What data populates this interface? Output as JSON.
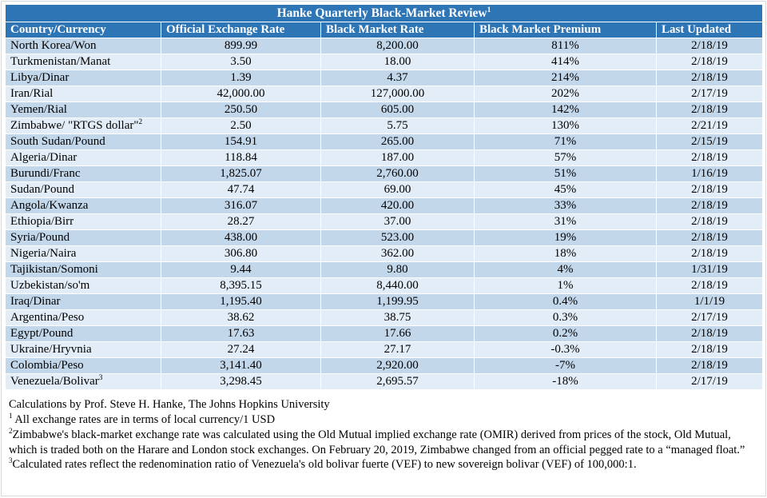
{
  "title": {
    "text": "Hanke Quarterly Black-Market Review",
    "sup": "1"
  },
  "colors": {
    "header_bg": "#2E75B6",
    "header_text": "#FFFFFF",
    "row_dark": "#C3D7EB",
    "row_light": "#E3EDF7"
  },
  "chart_data": {
    "type": "table",
    "title": "Hanke Quarterly Black-Market Review",
    "columns": [
      "Country/Currency",
      "Official Exchange Rate",
      "Black Market Rate",
      "Black Market Premium",
      "Last Updated"
    ],
    "rows": [
      {
        "country": "North Korea/Won",
        "sup": "",
        "official": "899.99",
        "black_market": "8,200.00",
        "premium": "811%",
        "updated": "2/18/19"
      },
      {
        "country": "Turkmenistan/Manat",
        "sup": "",
        "official": "3.50",
        "black_market": "18.00",
        "premium": "414%",
        "updated": "2/18/19"
      },
      {
        "country": "Libya/Dinar",
        "sup": "",
        "official": "1.39",
        "black_market": "4.37",
        "premium": "214%",
        "updated": "2/18/19"
      },
      {
        "country": "Iran/Rial",
        "sup": "",
        "official": "42,000.00",
        "black_market": "127,000.00",
        "premium": "202%",
        "updated": "2/17/19"
      },
      {
        "country": "Yemen/Rial",
        "sup": "",
        "official": "250.50",
        "black_market": "605.00",
        "premium": "142%",
        "updated": "2/18/19"
      },
      {
        "country": "Zimbabwe/ \"RTGS dollar\"",
        "sup": "2",
        "official": "2.50",
        "black_market": "5.75",
        "premium": "130%",
        "updated": "2/21/19"
      },
      {
        "country": "South Sudan/Pound",
        "sup": "",
        "official": "154.91",
        "black_market": "265.00",
        "premium": "71%",
        "updated": "2/15/19"
      },
      {
        "country": "Algeria/Dinar",
        "sup": "",
        "official": "118.84",
        "black_market": "187.00",
        "premium": "57%",
        "updated": "2/18/19"
      },
      {
        "country": "Burundi/Franc",
        "sup": "",
        "official": "1,825.07",
        "black_market": "2,760.00",
        "premium": "51%",
        "updated": "1/16/19"
      },
      {
        "country": "Sudan/Pound",
        "sup": "",
        "official": "47.74",
        "black_market": "69.00",
        "premium": "45%",
        "updated": "2/18/19"
      },
      {
        "country": "Angola/Kwanza",
        "sup": "",
        "official": "316.07",
        "black_market": "420.00",
        "premium": "33%",
        "updated": "2/18/19"
      },
      {
        "country": "Ethiopia/Birr",
        "sup": "",
        "official": "28.27",
        "black_market": "37.00",
        "premium": "31%",
        "updated": "2/18/19"
      },
      {
        "country": "Syria/Pound",
        "sup": "",
        "official": "438.00",
        "black_market": "523.00",
        "premium": "19%",
        "updated": "2/18/19"
      },
      {
        "country": "Nigeria/Naira",
        "sup": "",
        "official": "306.80",
        "black_market": "362.00",
        "premium": "18%",
        "updated": "2/18/19"
      },
      {
        "country": "Tajikistan/Somoni",
        "sup": "",
        "official": "9.44",
        "black_market": "9.80",
        "premium": "4%",
        "updated": "1/31/19"
      },
      {
        "country": "Uzbekistan/so'm",
        "sup": "",
        "official": "8,395.15",
        "black_market": "8,440.00",
        "premium": "1%",
        "updated": "2/18/19"
      },
      {
        "country": "Iraq/Dinar",
        "sup": "",
        "official": "1,195.40",
        "black_market": "1,199.95",
        "premium": "0.4%",
        "updated": "1/1/19"
      },
      {
        "country": "Argentina/Peso",
        "sup": "",
        "official": "38.62",
        "black_market": "38.75",
        "premium": "0.3%",
        "updated": "2/17/19"
      },
      {
        "country": "Egypt/Pound",
        "sup": "",
        "official": "17.63",
        "black_market": "17.66",
        "premium": "0.2%",
        "updated": "2/18/19"
      },
      {
        "country": "Ukraine/Hryvnia",
        "sup": "",
        "official": "27.24",
        "black_market": "27.17",
        "premium": "-0.3%",
        "updated": "2/18/19"
      },
      {
        "country": "Colombia/Peso",
        "sup": "",
        "official": "3,141.40",
        "black_market": "2,920.00",
        "premium": "-7%",
        "updated": "2/18/19"
      },
      {
        "country": "Venezuela/Bolivar",
        "sup": "3",
        "official": "3,298.45",
        "black_market": "2,695.57",
        "premium": "-18%",
        "updated": "2/17/19"
      }
    ]
  },
  "footer": {
    "credit": "Calculations by Prof. Steve H. Hanke, The Johns Hopkins University",
    "notes": [
      {
        "sup": "1",
        "text": " All exchange rates are in terms of local currency/1 USD"
      },
      {
        "sup": "2",
        "text": "Zimbabwe's black-market exchange rate was calculated using the Old Mutual implied exchange rate (OMIR) derived from prices of the stock, Old Mutual, which is traded both on the Harare and London stock exchanges. On February 20, 2019, Zimbabwe changed from an official pegged rate to a “managed float.”"
      },
      {
        "sup": "3",
        "text": "Calculated rates reflect the redenomination ratio of Venezuela's old bolivar fuerte (VEF) to new sovereign bolivar (VEF) of 100,000:1."
      }
    ]
  }
}
